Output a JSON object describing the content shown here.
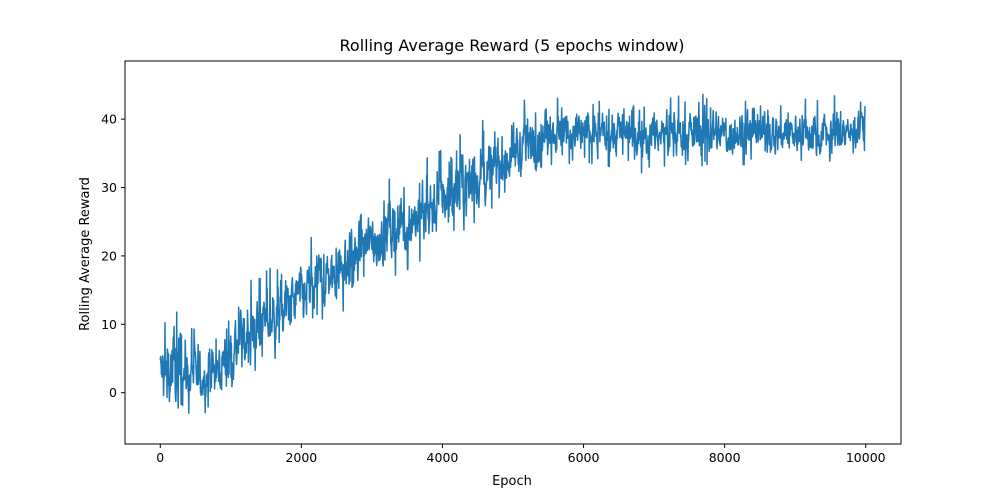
{
  "chart_data": {
    "type": "line",
    "title": "Rolling Average Reward (5 epochs window)",
    "xlabel": "Epoch",
    "ylabel": "Rolling Average Reward",
    "xlim": [
      -500,
      10500
    ],
    "ylim": [
      -7.5,
      48.5
    ],
    "xticks": [
      0,
      2000,
      4000,
      6000,
      8000,
      10000
    ],
    "yticks": [
      0,
      10,
      20,
      30,
      40
    ],
    "grid": false,
    "legend": "none",
    "line_color": "#1f77b4",
    "series": [
      {
        "x": [
          0,
          200,
          400,
          600,
          800,
          1000,
          1200,
          1400,
          1600,
          1800,
          2000,
          2200,
          2400,
          2600,
          2800,
          3000,
          3200,
          3400,
          3600,
          3800,
          4000,
          4200,
          4400,
          4600,
          4800,
          5000,
          5200,
          5400,
          5600,
          5800,
          6000,
          6200,
          6400,
          6600,
          6800,
          7000,
          7200,
          7400,
          7600,
          7800,
          8000,
          8200,
          8400,
          8600,
          8800,
          9000,
          9200,
          9400,
          9600,
          9800,
          9990
        ],
        "y": [
          3,
          3.5,
          3,
          2.5,
          3,
          6,
          8,
          9.5,
          11,
          12.5,
          14,
          15.5,
          17.5,
          19,
          20.5,
          22,
          23.5,
          24.5,
          25.5,
          27,
          28.5,
          29.5,
          31,
          32,
          33.5,
          35,
          36.5,
          37.5,
          38,
          38,
          38,
          38,
          38,
          38,
          38,
          38,
          38,
          38,
          38,
          38,
          38,
          38,
          38,
          38,
          38,
          38,
          38,
          38,
          38,
          38,
          40
        ],
        "low": [
          -4.8,
          -5.5,
          -3,
          -3,
          -2.5,
          0,
          2,
          3.5,
          4.5,
          6,
          7,
          8.5,
          10.5,
          12,
          13,
          15,
          16.5,
          17.5,
          18.5,
          20,
          22,
          23,
          24.5,
          26,
          28,
          29.5,
          31.5,
          33,
          33.5,
          33.5,
          33.5,
          33.5,
          33,
          33.5,
          32,
          33.5,
          33,
          33.5,
          33,
          33.5,
          33.5,
          33.5,
          33,
          33.5,
          33,
          33,
          32,
          33.5,
          33,
          33.5,
          35.5
        ],
        "high": [
          9,
          13,
          9.5,
          9,
          9.5,
          14,
          16,
          17,
          18.5,
          20.5,
          22,
          23,
          25,
          27,
          28.5,
          29.5,
          31,
          32,
          33,
          34.5,
          35.5,
          37.5,
          38.5,
          40,
          41.5,
          43,
          43,
          43.5,
          43,
          43.5,
          44,
          43.5,
          44,
          43,
          43.5,
          43.5,
          43,
          43.5,
          44,
          45,
          44,
          43.5,
          43,
          43.5,
          43.5,
          43,
          43.5,
          43,
          43.5,
          43,
          45
        ]
      }
    ]
  }
}
